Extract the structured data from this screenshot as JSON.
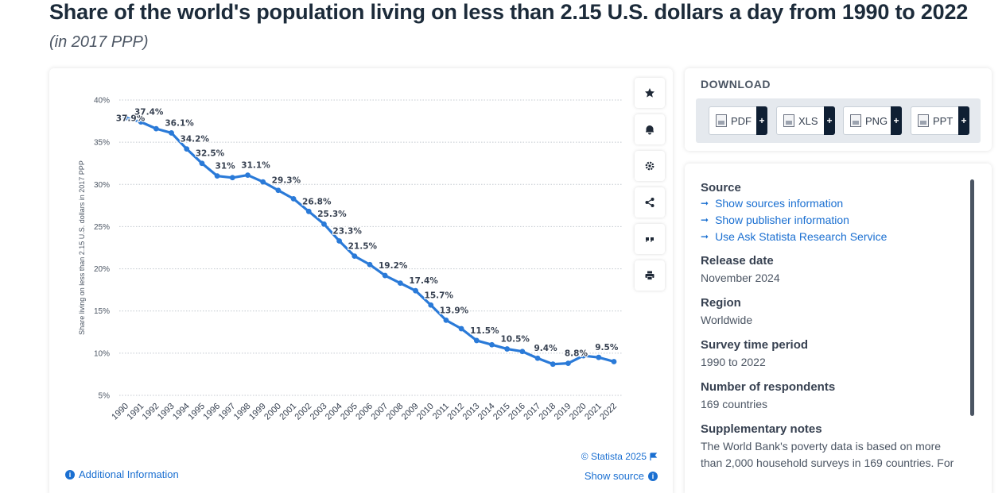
{
  "header": {
    "title": "Share of the world's population living on less than 2.15 U.S. dollars a day from 1990 to 2022",
    "subtitle": "(in 2017 PPP)"
  },
  "chart_data": {
    "type": "line",
    "title": "",
    "xlabel": "",
    "ylabel": "Share living on less than 2.15 U.S. dollars in 2017 PPP",
    "ylim": [
      5,
      40
    ],
    "yticks": [
      "5%",
      "10%",
      "15%",
      "20%",
      "25%",
      "30%",
      "35%",
      "40%"
    ],
    "y_tick_values": [
      5,
      10,
      15,
      20,
      25,
      30,
      35,
      40
    ],
    "grid": true,
    "x": [
      "1990",
      "1991",
      "1992",
      "1993",
      "1994",
      "1995",
      "1996",
      "1997",
      "1998",
      "1999",
      "2000",
      "2001",
      "2002",
      "2003",
      "2004",
      "2005",
      "2006",
      "2007",
      "2008",
      "2009",
      "2010",
      "2011",
      "2012",
      "2013",
      "2014",
      "2015",
      "2016",
      "2017",
      "2018",
      "2019",
      "2020",
      "2021",
      "2022"
    ],
    "values": [
      37.9,
      37.4,
      36.6,
      36.1,
      34.2,
      32.5,
      31.0,
      30.8,
      31.1,
      30.3,
      29.3,
      28.3,
      26.8,
      25.3,
      23.3,
      21.5,
      20.5,
      19.2,
      18.3,
      17.4,
      15.7,
      13.9,
      12.9,
      11.5,
      11.0,
      10.5,
      10.2,
      9.4,
      8.7,
      8.8,
      9.7,
      9.5,
      9.0
    ],
    "data_labels": [
      {
        "index": 0,
        "text": "37.9%"
      },
      {
        "index": 1,
        "text": "37.4%"
      },
      {
        "index": 3,
        "text": "36.1%"
      },
      {
        "index": 4,
        "text": "34.2%"
      },
      {
        "index": 5,
        "text": "32.5%"
      },
      {
        "index": 6,
        "text": "31%"
      },
      {
        "index": 8,
        "text": "31.1%"
      },
      {
        "index": 10,
        "text": "29.3%"
      },
      {
        "index": 12,
        "text": "26.8%"
      },
      {
        "index": 13,
        "text": "25.3%"
      },
      {
        "index": 14,
        "text": "23.3%"
      },
      {
        "index": 15,
        "text": "21.5%"
      },
      {
        "index": 17,
        "text": "19.2%"
      },
      {
        "index": 19,
        "text": "17.4%"
      },
      {
        "index": 20,
        "text": "15.7%"
      },
      {
        "index": 21,
        "text": "13.9%"
      },
      {
        "index": 23,
        "text": "11.5%"
      },
      {
        "index": 25,
        "text": "10.5%"
      },
      {
        "index": 27,
        "text": "9.4%"
      },
      {
        "index": 29,
        "text": "8.8%"
      },
      {
        "index": 31,
        "text": "9.5%"
      }
    ],
    "line_color": "#2a7ad8"
  },
  "chart_footer": {
    "additional_info": "Additional Information",
    "copyright": "© Statista 2025",
    "show_source": "Show source"
  },
  "tools": [
    "star-icon",
    "bell-icon",
    "gear-icon",
    "share-icon",
    "quote-icon",
    "print-icon"
  ],
  "download": {
    "title": "DOWNLOAD",
    "buttons": [
      {
        "label": "PDF",
        "plus": "+"
      },
      {
        "label": "XLS",
        "plus": "+"
      },
      {
        "label": "PNG",
        "plus": "+"
      },
      {
        "label": "PPT",
        "plus": "+"
      }
    ]
  },
  "info": {
    "source_head": "Source",
    "links": [
      "Show sources information",
      "Show publisher information",
      "Use Ask Statista Research Service"
    ],
    "release_head": "Release date",
    "release_val": "November 2024",
    "region_head": "Region",
    "region_val": "Worldwide",
    "survey_head": "Survey time period",
    "survey_val": "1990 to 2022",
    "respondents_head": "Number of respondents",
    "respondents_val": "169 countries",
    "notes_head": "Supplementary notes",
    "notes_val": "The World Bank's poverty data is based on more than 2,000 household surveys in 169 countries. For"
  }
}
